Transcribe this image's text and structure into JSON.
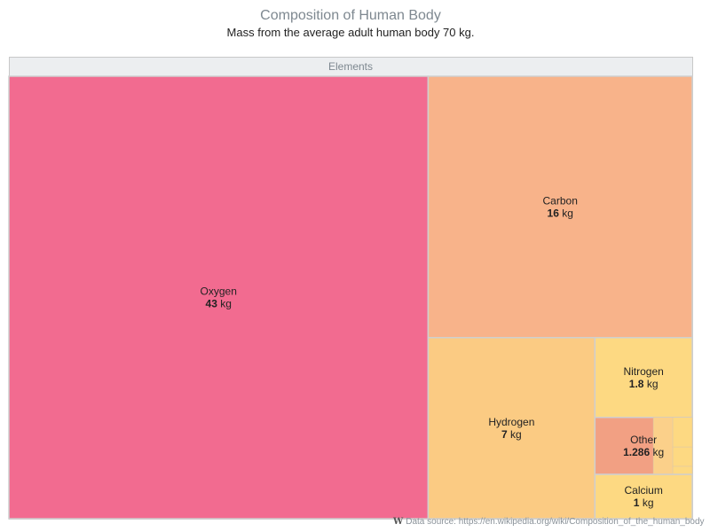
{
  "title": "Composition of Human Body",
  "subtitle": "Mass from the average adult human body 70 kg.",
  "credit": {
    "icon": "wikipedia-icon",
    "text": "Data source: https://en.wikipedia.org/wiki/Composition_of_the_human_body"
  },
  "chart_data": {
    "type": "treemap",
    "title": "Composition of Human Body",
    "subtitle": "Mass from the average adult human body 70 kg.",
    "root_label": "Elements",
    "unit": "kg",
    "items": [
      {
        "name": "Oxygen",
        "value": 43,
        "value_label": "43",
        "color": "#f26b90"
      },
      {
        "name": "Carbon",
        "value": 16,
        "value_label": "16",
        "color": "#f8b38a"
      },
      {
        "name": "Hydrogen",
        "value": 7,
        "value_label": "7",
        "color": "#fbcb83"
      },
      {
        "name": "Nitrogen",
        "value": 1.8,
        "value_label": "1.8",
        "color": "#fdd982"
      },
      {
        "name": "Other",
        "value": 1.286,
        "value_label": "1.286",
        "color": "#f2a083"
      },
      {
        "name": "Calcium",
        "value": 1,
        "value_label": "1",
        "color": "#fdd982"
      }
    ]
  }
}
